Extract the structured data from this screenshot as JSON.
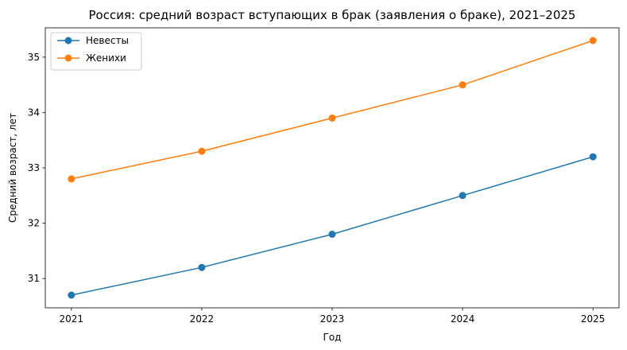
{
  "chart_data": {
    "type": "line",
    "title": "Россия: средний возраст вступающих в брак (заявления о браке), 2021–2025",
    "xlabel": "Год",
    "ylabel": "Средний возраст, лет",
    "x": [
      2021,
      2022,
      2023,
      2024,
      2025
    ],
    "x_tick_labels": [
      "2021",
      "2022",
      "2023",
      "2024",
      "2025"
    ],
    "y_ticks": [
      31,
      32,
      33,
      34,
      35
    ],
    "y_tick_labels": [
      "31",
      "32",
      "33",
      "34",
      "35"
    ],
    "xlim": [
      2020.8,
      2025.2
    ],
    "ylim": [
      30.47,
      35.53
    ],
    "grid": false,
    "legend_position": "upper-left",
    "series": [
      {
        "name": "Невесты",
        "color": "#1f77b4",
        "values": [
          30.7,
          31.2,
          31.8,
          32.5,
          33.2
        ]
      },
      {
        "name": "Женихи",
        "color": "#ff7f0e",
        "values": [
          32.8,
          33.3,
          33.9,
          34.5,
          35.3
        ]
      }
    ]
  }
}
